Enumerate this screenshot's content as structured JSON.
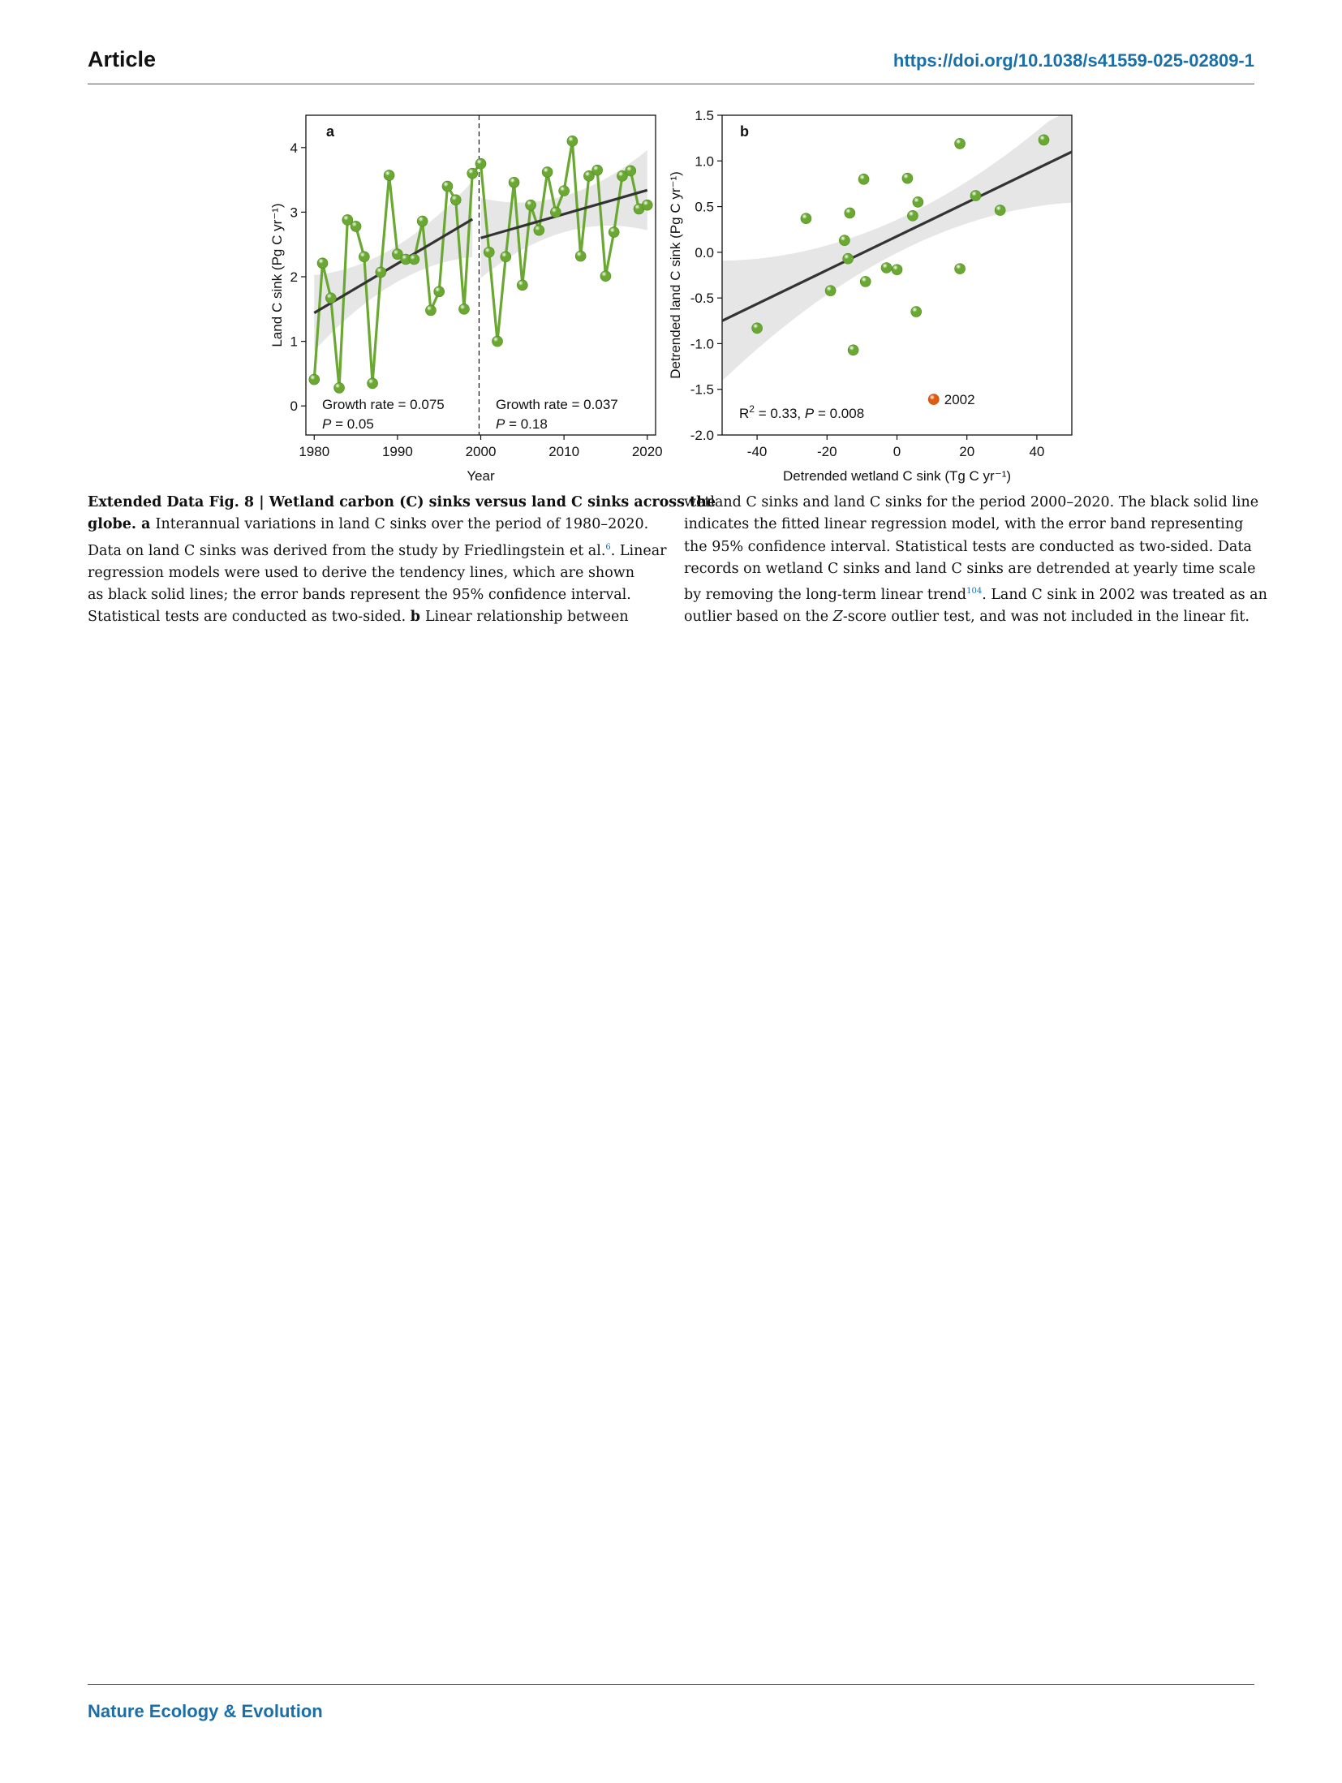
{
  "header": {
    "section": "Article",
    "doi": "https://doi.org/10.1038/s41559-025-02809-1"
  },
  "footer": {
    "journal": "Nature Ecology & Evolution"
  },
  "colors": {
    "green": "#6aa832",
    "orange": "#e05a10",
    "link": "#1b6fa8",
    "band": "#e6e6e6",
    "line": "#333333"
  },
  "chart_data": [
    {
      "panel": "a",
      "type": "line",
      "xlabel": "Year",
      "ylabel": "Land C sink (Pg C yr⁻¹)",
      "xlim": [
        1979,
        2021
      ],
      "ylim": [
        -0.45,
        4.5
      ],
      "xticks": [
        1980,
        1990,
        2000,
        2010,
        2020
      ],
      "yticks": [
        0,
        1,
        2,
        3,
        4
      ],
      "divider_x": 1999.8,
      "x": [
        1980,
        1981,
        1982,
        1983,
        1984,
        1985,
        1986,
        1987,
        1988,
        1989,
        1990,
        1991,
        1992,
        1993,
        1994,
        1995,
        1996,
        1997,
        1998,
        1999,
        2000,
        2001,
        2002,
        2003,
        2004,
        2005,
        2006,
        2007,
        2008,
        2009,
        2010,
        2011,
        2012,
        2013,
        2014,
        2015,
        2016,
        2017,
        2018,
        2019,
        2020
      ],
      "values": [
        0.41,
        2.21,
        1.67,
        0.28,
        2.88,
        2.78,
        2.31,
        0.35,
        2.07,
        3.57,
        2.35,
        2.27,
        2.27,
        2.86,
        1.48,
        1.77,
        3.4,
        3.19,
        1.5,
        3.6,
        3.75,
        2.38,
        1.0,
        2.31,
        3.46,
        1.87,
        3.11,
        2.72,
        3.62,
        3.0,
        3.33,
        4.1,
        2.32,
        3.56,
        3.65,
        2.01,
        2.69,
        3.56,
        3.64,
        3.05,
        3.11
      ],
      "trend_lines": [
        {
          "x": [
            1980,
            1999
          ],
          "y": [
            1.44,
            2.89
          ]
        },
        {
          "x": [
            2000,
            2020
          ],
          "y": [
            2.6,
            3.34
          ]
        }
      ],
      "annotations": [
        {
          "line1": "Growth rate = 0.075",
          "line2_var": "P",
          "line2_rest": " = 0.05"
        },
        {
          "line1": "Growth rate = 0.037",
          "line2_var": "P",
          "line2_rest": " = 0.18"
        }
      ]
    },
    {
      "panel": "b",
      "type": "scatter",
      "xlabel": "Detrended wetland C sink (Tg C yr⁻¹)",
      "ylabel": "Detrended land C sink (Pg C yr⁻¹)",
      "xlim": [
        -50,
        50
      ],
      "ylim": [
        -2.0,
        1.5
      ],
      "xticks": [
        -40,
        -20,
        0,
        20,
        40
      ],
      "yticks": [
        1.5,
        1.0,
        0.5,
        0.0,
        -0.5,
        -1.0,
        -1.5,
        -2.0
      ],
      "points": [
        [
          -40,
          -0.83
        ],
        [
          -26,
          0.37
        ],
        [
          -19,
          -0.42
        ],
        [
          -15,
          0.13
        ],
        [
          -14,
          -0.07
        ],
        [
          -13.5,
          0.43
        ],
        [
          -12.5,
          -1.07
        ],
        [
          -9.5,
          0.8
        ],
        [
          -9,
          -0.32
        ],
        [
          -3,
          -0.17
        ],
        [
          0,
          -0.19
        ],
        [
          3,
          0.81
        ],
        [
          4.5,
          0.4
        ],
        [
          5.5,
          -0.65
        ],
        [
          6,
          0.55
        ],
        [
          18,
          1.19
        ],
        [
          18,
          -0.18
        ],
        [
          22.5,
          0.62
        ],
        [
          29.5,
          0.46
        ],
        [
          42,
          1.23
        ]
      ],
      "outlier": {
        "x": 10.5,
        "y": -1.61,
        "label": "2002"
      },
      "fit": {
        "x": [
          -50,
          50
        ],
        "y": [
          -0.75,
          1.1
        ]
      },
      "stats": {
        "r2_label": "R",
        "r2_sup": "2",
        "r2_rest": " = 0.33, ",
        "p_var": "P",
        "p_rest": " = 0.008"
      }
    }
  ],
  "caption": {
    "left_lines": [
      {
        "bold": "Extended Data Fig. 8 | Wetland carbon (C) sinks versus land C sinks across the",
        "text": ""
      },
      {
        "bold": "globe. a ",
        "text": "Interannual variations in land C sinks over the period of 1980–2020."
      },
      {
        "bold": "",
        "text": "Data on land C sinks was derived from the study by Friedlingstein et al.",
        "ref": "6",
        "after": ". Linear"
      },
      {
        "bold": "",
        "text": "regression models were used to derive the tendency lines, which are shown"
      },
      {
        "bold": "",
        "text": "as black solid lines; the error bands represent the 95% confidence interval."
      },
      {
        "bold": "",
        "text": "Statistical tests are conducted as two-sided. ",
        "bold2": "b ",
        "after": "Linear relationship between"
      }
    ],
    "right_lines": [
      {
        "text": "wetland C sinks and land C sinks for the period 2000–2020. The black solid line"
      },
      {
        "text": "indicates the fitted linear regression model, with the error band representing"
      },
      {
        "text": "the 95% confidence interval. Statistical tests are conducted as two-sided. Data"
      },
      {
        "text": "records on wetland C sinks and land C sinks are detrended at yearly time scale"
      },
      {
        "text": "by removing the long-term linear trend",
        "ref": "104",
        "after": ". Land C sink in 2002 was treated as an"
      },
      {
        "text": "outlier based on the ",
        "ital": "Z",
        "after": "-score outlier test, and was not included in the linear fit."
      }
    ]
  }
}
